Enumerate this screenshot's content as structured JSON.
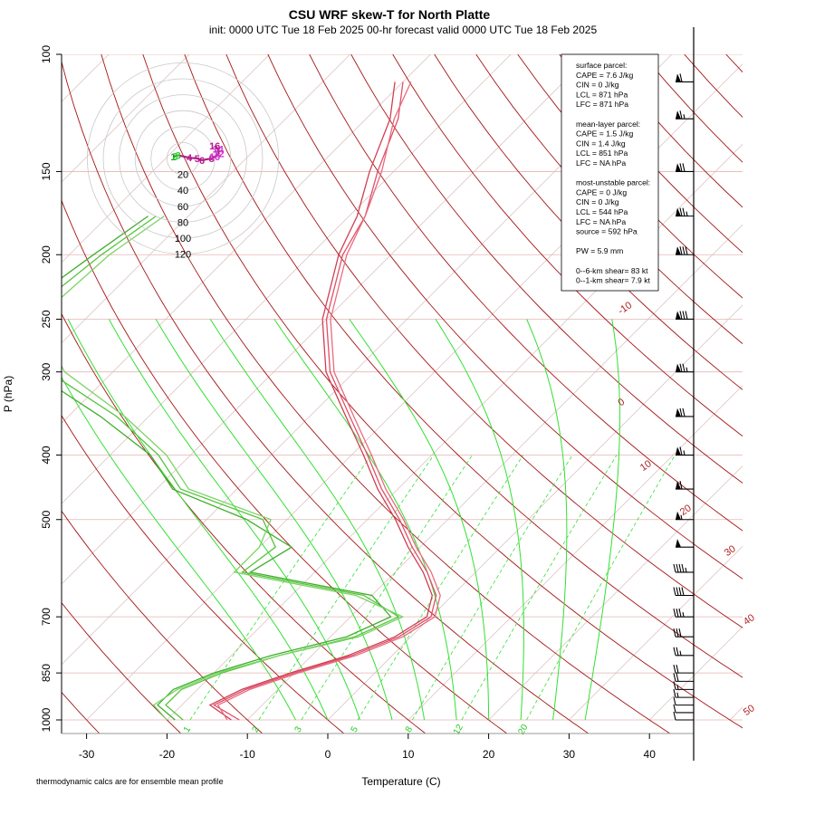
{
  "header": {
    "title": "CSU WRF skew-T for North Platte",
    "subtitle": "init: 0000 UTC Tue 18 Feb 2025     00-hr forecast valid 0000 UTC Tue 18 Feb 2025"
  },
  "axes": {
    "xlabel": "Temperature (C)",
    "ylabel": "P (hPa)",
    "footnote": "thermodynamic calcs are for ensemble mean profile"
  },
  "colors": {
    "temperature": "#e0506a",
    "dewpoint": "#55c43c",
    "dry_adiabat": "#a51515",
    "moist_adiabat": "#33e033",
    "mixing_ratio": "#33e033",
    "isobar": "#e6b3b3",
    "isotherm": "#d9bcbc"
  },
  "info_box": {
    "lines": [
      "surface parcel:",
      "CAPE = 7.6 J/kg",
      "CIN = 0 J/kg",
      "LCL = 871 hPa",
      "LFC = 871 hPa",
      "",
      "mean-layer parcel:",
      "CAPE = 1.5 J/kg",
      "CIN = 1.4 J/kg",
      "LCL = 851 hPa",
      "LFC = NA hPa",
      "",
      "most-unstable parcel:",
      "CAPE = 0 J/kg",
      "CIN = 0 J/kg",
      "LCL = 544 hPa",
      "LFC = NA hPa",
      "source = 592 hPa",
      "",
      "PW =  5.9 mm",
      "",
      "0--6-km shear= 83 kt",
      "0--1-km shear= 7.9 kt"
    ]
  },
  "hodograph": {
    "ring_labels": [
      "20",
      "40",
      "60",
      "80",
      "100",
      "120"
    ],
    "ring_speeds_kt": [
      20,
      40,
      60,
      80,
      100,
      120
    ],
    "height_labels": [
      "1",
      "2",
      "3",
      "4",
      "5",
      "6",
      "8",
      "10",
      "12",
      "14",
      "16"
    ],
    "points_kt": [
      [
        -12,
        2
      ],
      [
        -10,
        3
      ],
      [
        -6,
        4
      ],
      [
        8,
        1
      ],
      [
        18,
        0
      ],
      [
        24,
        -2
      ],
      [
        36,
        0
      ],
      [
        40,
        2
      ],
      [
        45,
        6
      ],
      [
        44,
        12
      ],
      [
        40,
        16
      ]
    ]
  },
  "chart_data": {
    "type": "skew-t",
    "title": "CSU WRF skew-T for North Platte",
    "xlabel": "Temperature (C)",
    "ylabel": "P (hPa)",
    "xlim": [
      -33,
      45
    ],
    "ylim_hPa": [
      1000,
      100
    ],
    "x_ticks": [
      -30,
      -20,
      -10,
      0,
      10,
      20,
      30,
      40
    ],
    "p_ticks": [
      1000,
      850,
      700,
      500,
      400,
      300,
      250,
      200,
      150,
      100
    ],
    "dry_adiabat_labels": [
      -10,
      0,
      10,
      20,
      30,
      40,
      50
    ],
    "mixing_ratio_labels": [
      "1",
      "2",
      "3",
      "5",
      "8",
      "12",
      "20"
    ],
    "series": [
      {
        "name": "temperature",
        "members": [
          [
            [
              1000,
              -11
            ],
            [
              950,
              -16
            ],
            [
              900,
              -14
            ],
            [
              850,
              -10
            ],
            [
              800,
              -5
            ],
            [
              750,
              -1.5
            ],
            [
              700,
              0
            ],
            [
              650,
              -2
            ],
            [
              600,
              -6
            ],
            [
              550,
              -11
            ],
            [
              500,
              -16
            ],
            [
              450,
              -22
            ],
            [
              400,
              -28
            ],
            [
              350,
              -35
            ],
            [
              300,
              -43
            ],
            [
              250,
              -50
            ],
            [
              200,
              -56
            ],
            [
              175,
              -58
            ],
            [
              150,
              -62
            ],
            [
              125,
              -66
            ],
            [
              110,
              -70
            ]
          ],
          [
            [
              1000,
              -12
            ],
            [
              950,
              -16.5
            ],
            [
              900,
              -14.5
            ],
            [
              850,
              -10.5
            ],
            [
              800,
              -5.5
            ],
            [
              750,
              -2
            ],
            [
              700,
              -0.5
            ],
            [
              650,
              -2.5
            ],
            [
              600,
              -6.5
            ],
            [
              550,
              -11.5
            ],
            [
              500,
              -16.5
            ],
            [
              450,
              -22.5
            ],
            [
              400,
              -28.5
            ],
            [
              350,
              -35.5
            ],
            [
              300,
              -43.5
            ],
            [
              250,
              -50.5
            ],
            [
              200,
              -56.5
            ],
            [
              175,
              -59
            ],
            [
              150,
              -63
            ],
            [
              125,
              -67
            ],
            [
              110,
              -71
            ]
          ],
          [
            [
              1000,
              -12.5
            ],
            [
              950,
              -15.5
            ],
            [
              900,
              -13.5
            ],
            [
              850,
              -9.5
            ],
            [
              800,
              -4.5
            ],
            [
              750,
              -1
            ],
            [
              700,
              0.5
            ],
            [
              650,
              -1.5
            ],
            [
              600,
              -5.5
            ],
            [
              550,
              -10.5
            ],
            [
              500,
              -15.5
            ],
            [
              450,
              -21.5
            ],
            [
              400,
              -27.5
            ],
            [
              350,
              -34.5
            ],
            [
              300,
              -42.5
            ],
            [
              250,
              -49.5
            ],
            [
              200,
              -55.5
            ],
            [
              175,
              -58
            ],
            [
              150,
              -61.5
            ],
            [
              125,
              -66.5
            ],
            [
              110,
              -69
            ]
          ]
        ]
      },
      {
        "name": "dewpoint",
        "members": [
          [
            [
              1000,
              -18
            ],
            [
              950,
              -22
            ],
            [
              900,
              -22
            ],
            [
              850,
              -19
            ],
            [
              800,
              -14
            ],
            [
              750,
              -7
            ],
            [
              700,
              -4
            ],
            [
              650,
              -11
            ],
            [
              600,
              -29
            ],
            [
              550,
              -28
            ],
            [
              500,
              -33
            ],
            [
              450,
              -47
            ],
            [
              400,
              -54
            ],
            [
              350,
              -64
            ],
            [
              300,
              -78
            ],
            [
              250,
              -88
            ],
            [
              200,
              -86
            ],
            [
              175,
              -84
            ]
          ],
          [
            [
              1000,
              -19
            ],
            [
              950,
              -23
            ],
            [
              900,
              -23
            ],
            [
              850,
              -20
            ],
            [
              800,
              -15
            ],
            [
              750,
              -8
            ],
            [
              700,
              -5
            ],
            [
              650,
              -10
            ],
            [
              600,
              -28
            ],
            [
              550,
              -26
            ],
            [
              500,
              -35
            ],
            [
              450,
              -48
            ],
            [
              400,
              -55
            ],
            [
              350,
              -66
            ],
            [
              300,
              -80
            ],
            [
              250,
              -90
            ],
            [
              200,
              -87
            ],
            [
              175,
              -85
            ]
          ],
          [
            [
              1000,
              -20
            ],
            [
              950,
              -23.5
            ],
            [
              900,
              -22.5
            ],
            [
              850,
              -19.5
            ],
            [
              800,
              -14
            ],
            [
              750,
              -6.5
            ],
            [
              700,
              -3.5
            ],
            [
              650,
              -12
            ],
            [
              600,
              -30
            ],
            [
              550,
              -30
            ],
            [
              500,
              -32
            ],
            [
              450,
              -46
            ],
            [
              400,
              -53
            ],
            [
              350,
              -63
            ],
            [
              300,
              -76
            ],
            [
              250,
              -86
            ],
            [
              200,
              -85
            ],
            [
              175,
              -83
            ]
          ]
        ]
      }
    ],
    "wind_barbs": [
      {
        "p": 1000,
        "speed_kt": 10
      },
      {
        "p": 975,
        "speed_kt": 10
      },
      {
        "p": 950,
        "speed_kt": 10
      },
      {
        "p": 925,
        "speed_kt": 15
      },
      {
        "p": 900,
        "speed_kt": 15
      },
      {
        "p": 875,
        "speed_kt": 20
      },
      {
        "p": 850,
        "speed_kt": 20
      },
      {
        "p": 800,
        "speed_kt": 25
      },
      {
        "p": 750,
        "speed_kt": 30
      },
      {
        "p": 700,
        "speed_kt": 35
      },
      {
        "p": 650,
        "speed_kt": 40
      },
      {
        "p": 600,
        "speed_kt": 45
      },
      {
        "p": 550,
        "speed_kt": 50
      },
      {
        "p": 500,
        "speed_kt": 55
      },
      {
        "p": 450,
        "speed_kt": 60
      },
      {
        "p": 400,
        "speed_kt": 65
      },
      {
        "p": 350,
        "speed_kt": 70
      },
      {
        "p": 300,
        "speed_kt": 75
      },
      {
        "p": 250,
        "speed_kt": 80
      },
      {
        "p": 200,
        "speed_kt": 80
      },
      {
        "p": 175,
        "speed_kt": 75
      },
      {
        "p": 150,
        "speed_kt": 70
      },
      {
        "p": 125,
        "speed_kt": 65
      },
      {
        "p": 110,
        "speed_kt": 60
      }
    ]
  }
}
